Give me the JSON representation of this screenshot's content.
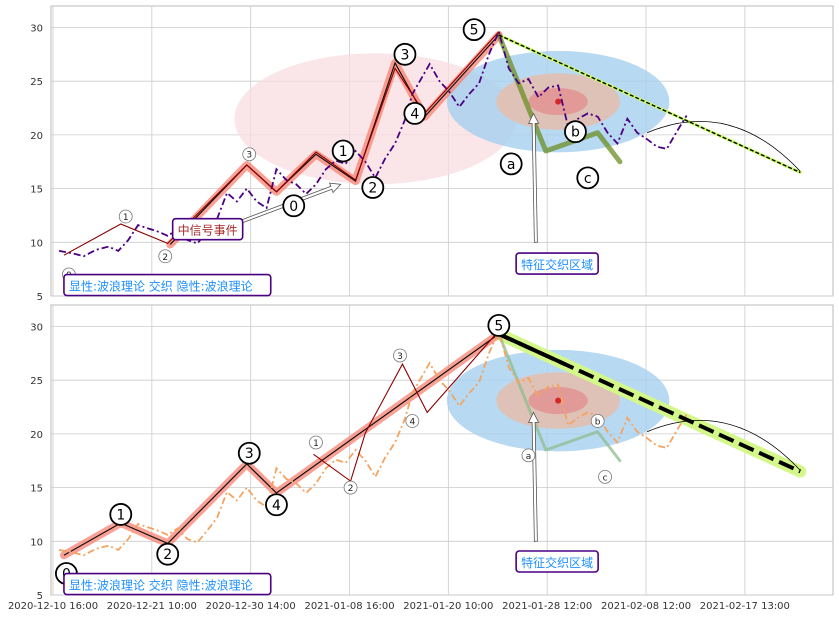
{
  "chart_data": [
    {
      "type": "line",
      "ylim": [
        5,
        32
      ],
      "yticks": [
        5,
        10,
        15,
        20,
        25,
        30
      ],
      "grid": true,
      "series": [
        {
          "style": "dash-dot",
          "color": "#4b0082",
          "x": [
            0,
            0.5,
            1,
            1.5,
            2,
            2.4,
            2.8,
            3.2,
            3.6,
            4,
            4.4,
            4.8,
            5.2,
            5.6,
            6,
            6.4,
            6.8,
            7.2,
            7.6,
            8,
            8.4,
            8.8,
            9.2,
            9.6,
            10,
            10.4,
            10.8,
            11.2,
            11.6,
            12,
            12.4,
            12.8,
            13.2,
            13.6,
            14,
            14.3,
            14.6,
            15,
            15.4,
            15.8,
            16.2,
            16.6,
            17,
            17.4,
            17.8,
            18.2,
            18.6,
            19,
            19.4,
            19.8,
            20.2,
            20.6,
            21,
            21.4,
            21.8,
            22.2,
            22.6,
            23,
            23.4,
            23.8,
            24.2,
            24.6,
            25,
            25.4
          ],
          "y": [
            9.2,
            9,
            8.7,
            9.3,
            9.6,
            9.2,
            10.2,
            11.6,
            11.3,
            11,
            10.6,
            11.2,
            10.2,
            9.9,
            11,
            12.2,
            14.6,
            13.8,
            15,
            13.8,
            13.2,
            16.8,
            15.8,
            15.4,
            14.5,
            15.4,
            16.8,
            17.6,
            17.3,
            18.5,
            17.5,
            16,
            17.8,
            19.2,
            21.4,
            23.8,
            25,
            26.6,
            25,
            24,
            22.6,
            23.8,
            24.8,
            27.5,
            29.6,
            26.2,
            24.8,
            25.2,
            23.5,
            24.4,
            24.6,
            20.8,
            21.5,
            22,
            21.7,
            20.2,
            19.2,
            21.5,
            20.2,
            19.6,
            18.9,
            18.7,
            20.3,
            21.8
          ]
        },
        {
          "style": "solid",
          "color": "#8b0000",
          "x": [
            0.2,
            2.5,
            4.4,
            7.6,
            8.8,
            10.4,
            12,
            13.6,
            14.8,
            17.8
          ],
          "y": [
            8.8,
            11.7,
            9.9,
            17.2,
            14.7,
            18.4,
            15.8,
            26.2,
            22,
            29.6
          ]
        }
      ],
      "wave_lines": [
        {
          "x": [
            4.5,
            7.6,
            8.8,
            10.4,
            12,
            13.6,
            14.8,
            17.8
          ],
          "y": [
            9.8,
            17.2,
            14.7,
            18.2,
            15.7,
            26.7,
            21.7,
            29.3
          ],
          "color": "#fa8072",
          "width": 8
        },
        {
          "x": [
            17.8,
            19.7,
            21.8,
            22.7
          ],
          "y": [
            29.3,
            18.5,
            20.2,
            17.5
          ],
          "color": "#6b8e23",
          "width": 5
        }
      ],
      "trend_line": {
        "x": [
          17.8,
          30
        ],
        "y": [
          29.3,
          16.5
        ],
        "style": "dashed",
        "color": "#000000"
      },
      "trend_shade": {
        "x": [
          17.8,
          30
        ],
        "y": [
          29.3,
          16.5
        ],
        "color": "#ccff66"
      },
      "arc": {
        "x": [
          23.8,
          27.2,
          30
        ],
        "y": [
          20.2,
          21.8,
          16.6
        ]
      },
      "ellipse": {
        "cx": 12.8,
        "cy": 21.5,
        "rx": 5.7,
        "ry": 6.1,
        "color": "#f8dde0"
      },
      "circles": {
        "cx": 20.2,
        "cy": 23.1,
        "layers": [
          {
            "r": 4.5,
            "color": "#a6d0ef"
          },
          {
            "r": 2.5,
            "color": "#e8bca8"
          },
          {
            "r": 1.2,
            "color": "#e29090"
          }
        ]
      },
      "large_labels": [
        {
          "text": "1",
          "x": 11.5,
          "y": 18.5
        },
        {
          "text": "2",
          "x": 12.7,
          "y": 15.1
        },
        {
          "text": "3",
          "x": 14.0,
          "y": 27.5
        },
        {
          "text": "4",
          "x": 14.4,
          "y": 22.0
        },
        {
          "text": "5",
          "x": 16.8,
          "y": 29.8
        },
        {
          "text": "0",
          "x": 9.5,
          "y": 13.4
        },
        {
          "text": "a",
          "x": 18.3,
          "y": 17.3
        },
        {
          "text": "b",
          "x": 20.9,
          "y": 20.3
        },
        {
          "text": "c",
          "x": 21.4,
          "y": 16.0
        }
      ],
      "small_labels": [
        {
          "text": "0",
          "x": 0.4,
          "y": 7.0
        },
        {
          "text": "1",
          "x": 2.7,
          "y": 12.4
        },
        {
          "text": "2",
          "x": 4.3,
          "y": 8.7
        },
        {
          "text": "3",
          "x": 7.7,
          "y": 18.2
        },
        {
          "text": "4",
          "x": 9.4,
          "y": 13.5
        }
      ],
      "annotations": [
        {
          "text": "中信号事件",
          "x": 4.6,
          "y": 10.8,
          "text_color": "#a52a2a",
          "border": "#4b0082"
        },
        {
          "text": "特征交织区域",
          "x": 18.5,
          "y": 7.6,
          "text_color": "#1e90ff",
          "border": "#4b0082"
        },
        {
          "text": "显性:波浪理论 交织 隐性:波浪理论",
          "x": 0.2,
          "y": 5.6,
          "text_color": "#1e90ff",
          "border": "#4b0082"
        }
      ],
      "arrows": [
        {
          "from": [
            7.0,
            11.6
          ],
          "to": [
            11.4,
            15.4
          ]
        },
        {
          "from": [
            19.3,
            10.0
          ],
          "to": [
            19.2,
            22.0
          ]
        }
      ]
    },
    {
      "type": "line",
      "ylim": [
        5,
        32
      ],
      "yticks": [
        5,
        10,
        15,
        20,
        25,
        30
      ],
      "grid": true,
      "series": [
        {
          "style": "dash-dot",
          "color": "#f4a460",
          "x": [
            0,
            0.5,
            1,
            1.5,
            2,
            2.4,
            2.8,
            3.2,
            3.6,
            4,
            4.4,
            4.8,
            5.2,
            5.6,
            6,
            6.4,
            6.8,
            7.2,
            7.6,
            8,
            8.4,
            8.8,
            9.2,
            9.6,
            10,
            10.4,
            10.8,
            11.2,
            11.6,
            12,
            12.4,
            12.8,
            13.2,
            13.6,
            14,
            14.3,
            14.6,
            15,
            15.4,
            15.8,
            16.2,
            16.6,
            17,
            17.4,
            17.8,
            18.2,
            18.6,
            19,
            19.4,
            19.8,
            20.2,
            20.6,
            21,
            21.4,
            21.8,
            22.2,
            22.6,
            23,
            23.4,
            23.8,
            24.2,
            24.6,
            25,
            25.4
          ],
          "y": [
            9.2,
            9,
            8.7,
            9.3,
            9.6,
            9.2,
            10.2,
            11.6,
            11.3,
            11,
            10.6,
            11.2,
            10.2,
            9.9,
            11,
            12.2,
            14.6,
            13.8,
            15,
            13.8,
            13.2,
            16.8,
            15.8,
            15.4,
            14.5,
            15.4,
            16.8,
            17.6,
            17.3,
            18.5,
            17.5,
            16,
            17.8,
            19.2,
            21.4,
            23.8,
            25,
            26.6,
            25,
            24,
            22.6,
            23.8,
            24.8,
            27.5,
            29.6,
            26.2,
            24.8,
            25.2,
            23.5,
            24.4,
            24.6,
            20.8,
            21.5,
            22,
            21.7,
            20.2,
            19.2,
            21.5,
            20.2,
            19.6,
            18.9,
            18.7,
            20.3,
            21.8
          ]
        },
        {
          "style": "solid",
          "color": "#8b0000",
          "x": [
            10.3,
            11.8,
            12.4,
            13.9,
            14.9,
            17.8
          ],
          "y": [
            18.1,
            15.6,
            20.1,
            26.5,
            22.0,
            29.6
          ]
        }
      ],
      "wave_lines": [
        {
          "x": [
            0.2,
            2.5,
            4.4,
            7.6,
            8.8,
            17.8
          ],
          "y": [
            8.7,
            11.7,
            9.8,
            17.2,
            14.5,
            29.3
          ],
          "color": "#fa8072",
          "width": 8
        },
        {
          "x": [
            17.8,
            19.7,
            21.8,
            22.7
          ],
          "y": [
            29.3,
            18.5,
            20.2,
            17.5
          ],
          "color": "#8fbc8f",
          "width": 3
        }
      ],
      "trend_line": {
        "x": [
          17.8,
          30
        ],
        "y": [
          29.3,
          16.5
        ],
        "style": "bold-dashed",
        "color": "#000000"
      },
      "trend_shade": {
        "x": [
          17.8,
          30
        ],
        "y": [
          29.3,
          16.5
        ],
        "color": "#d4f78a"
      },
      "arc": {
        "x": [
          23.8,
          27.2,
          30
        ],
        "y": [
          20.2,
          21.8,
          16.6
        ]
      },
      "circles": {
        "cx": 20.2,
        "cy": 23.1,
        "layers": [
          {
            "r": 4.5,
            "color": "#a6d0ef"
          },
          {
            "r": 2.5,
            "color": "#e8bca8"
          },
          {
            "r": 1.2,
            "color": "#e29090"
          }
        ]
      },
      "large_labels": [
        {
          "text": "0",
          "x": 0.3,
          "y": 7.0
        },
        {
          "text": "1",
          "x": 2.5,
          "y": 12.5
        },
        {
          "text": "2",
          "x": 4.4,
          "y": 8.8
        },
        {
          "text": "3",
          "x": 7.7,
          "y": 18.2
        },
        {
          "text": "4",
          "x": 8.8,
          "y": 13.4
        },
        {
          "text": "5",
          "x": 17.8,
          "y": 30.1
        }
      ],
      "small_labels": [
        {
          "text": "1",
          "x": 10.4,
          "y": 19.2
        },
        {
          "text": "2",
          "x": 11.8,
          "y": 15.0
        },
        {
          "text": "3",
          "x": 13.8,
          "y": 27.3
        },
        {
          "text": "4",
          "x": 14.3,
          "y": 21.2
        },
        {
          "text": "a",
          "x": 19.0,
          "y": 18.0
        },
        {
          "text": "b",
          "x": 21.8,
          "y": 21.2
        },
        {
          "text": "c",
          "x": 22.1,
          "y": 16.0
        }
      ],
      "annotations": [
        {
          "text": "特征交织区域",
          "x": 18.5,
          "y": 7.7,
          "text_color": "#1e90ff",
          "border": "#4b0082"
        },
        {
          "text": "显性:波浪理论 交织 隐性:波浪理论",
          "x": 0.2,
          "y": 5.6,
          "text_color": "#1e90ff",
          "border": "#4b0082"
        }
      ],
      "arrows": [
        {
          "from": [
            19.3,
            10.0
          ],
          "to": [
            19.2,
            22.0
          ]
        }
      ],
      "x_tick_labels": [
        "2020-12-10 16:00",
        "2020-12-21 10:00",
        "2020-12-30 14:00",
        "2021-01-08 16:00",
        "2021-01-20 10:00",
        "2021-01-28 12:00",
        "2021-02-08 12:00",
        "2021-02-17 13:00"
      ]
    }
  ]
}
